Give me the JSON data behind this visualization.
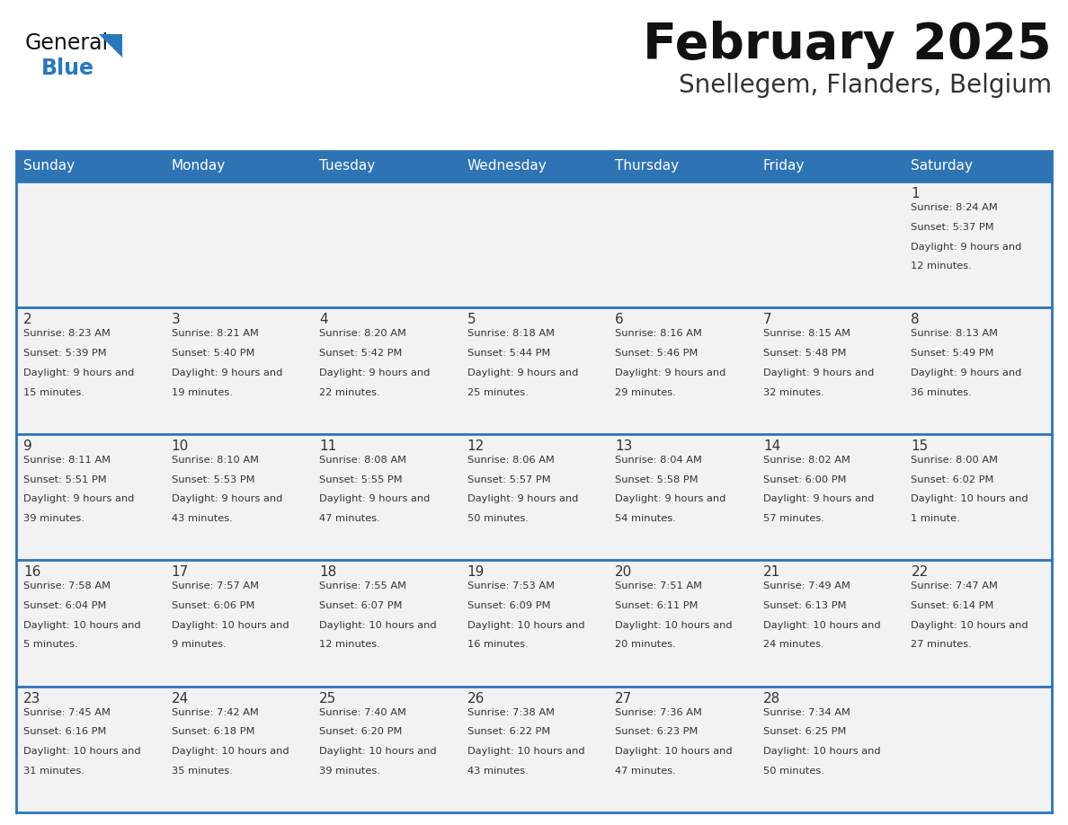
{
  "title": "February 2025",
  "subtitle": "Snellegem, Flanders, Belgium",
  "days_of_week": [
    "Sunday",
    "Monday",
    "Tuesday",
    "Wednesday",
    "Thursday",
    "Friday",
    "Saturday"
  ],
  "header_bg": "#2E74B5",
  "header_text": "#FFFFFF",
  "cell_bg": "#F2F2F2",
  "day_num_color": "#333333",
  "info_color": "#333333",
  "border_color": "#2E74B5",
  "title_color": "#111111",
  "subtitle_color": "#333333",
  "logo_general_color": "#111111",
  "logo_blue_color": "#2878BE",
  "fig_width": 11.88,
  "fig_height": 9.18,
  "dpi": 100,
  "calendar_data": [
    {
      "day": 1,
      "col": 6,
      "row": 0,
      "sunrise": "8:24 AM",
      "sunset": "5:37 PM",
      "daylight": "9 hours and 12 minutes"
    },
    {
      "day": 2,
      "col": 0,
      "row": 1,
      "sunrise": "8:23 AM",
      "sunset": "5:39 PM",
      "daylight": "9 hours and 15 minutes"
    },
    {
      "day": 3,
      "col": 1,
      "row": 1,
      "sunrise": "8:21 AM",
      "sunset": "5:40 PM",
      "daylight": "9 hours and 19 minutes"
    },
    {
      "day": 4,
      "col": 2,
      "row": 1,
      "sunrise": "8:20 AM",
      "sunset": "5:42 PM",
      "daylight": "9 hours and 22 minutes"
    },
    {
      "day": 5,
      "col": 3,
      "row": 1,
      "sunrise": "8:18 AM",
      "sunset": "5:44 PM",
      "daylight": "9 hours and 25 minutes"
    },
    {
      "day": 6,
      "col": 4,
      "row": 1,
      "sunrise": "8:16 AM",
      "sunset": "5:46 PM",
      "daylight": "9 hours and 29 minutes"
    },
    {
      "day": 7,
      "col": 5,
      "row": 1,
      "sunrise": "8:15 AM",
      "sunset": "5:48 PM",
      "daylight": "9 hours and 32 minutes"
    },
    {
      "day": 8,
      "col": 6,
      "row": 1,
      "sunrise": "8:13 AM",
      "sunset": "5:49 PM",
      "daylight": "9 hours and 36 minutes"
    },
    {
      "day": 9,
      "col": 0,
      "row": 2,
      "sunrise": "8:11 AM",
      "sunset": "5:51 PM",
      "daylight": "9 hours and 39 minutes"
    },
    {
      "day": 10,
      "col": 1,
      "row": 2,
      "sunrise": "8:10 AM",
      "sunset": "5:53 PM",
      "daylight": "9 hours and 43 minutes"
    },
    {
      "day": 11,
      "col": 2,
      "row": 2,
      "sunrise": "8:08 AM",
      "sunset": "5:55 PM",
      "daylight": "9 hours and 47 minutes"
    },
    {
      "day": 12,
      "col": 3,
      "row": 2,
      "sunrise": "8:06 AM",
      "sunset": "5:57 PM",
      "daylight": "9 hours and 50 minutes"
    },
    {
      "day": 13,
      "col": 4,
      "row": 2,
      "sunrise": "8:04 AM",
      "sunset": "5:58 PM",
      "daylight": "9 hours and 54 minutes"
    },
    {
      "day": 14,
      "col": 5,
      "row": 2,
      "sunrise": "8:02 AM",
      "sunset": "6:00 PM",
      "daylight": "9 hours and 57 minutes"
    },
    {
      "day": 15,
      "col": 6,
      "row": 2,
      "sunrise": "8:00 AM",
      "sunset": "6:02 PM",
      "daylight": "10 hours and 1 minute"
    },
    {
      "day": 16,
      "col": 0,
      "row": 3,
      "sunrise": "7:58 AM",
      "sunset": "6:04 PM",
      "daylight": "10 hours and 5 minutes"
    },
    {
      "day": 17,
      "col": 1,
      "row": 3,
      "sunrise": "7:57 AM",
      "sunset": "6:06 PM",
      "daylight": "10 hours and 9 minutes"
    },
    {
      "day": 18,
      "col": 2,
      "row": 3,
      "sunrise": "7:55 AM",
      "sunset": "6:07 PM",
      "daylight": "10 hours and 12 minutes"
    },
    {
      "day": 19,
      "col": 3,
      "row": 3,
      "sunrise": "7:53 AM",
      "sunset": "6:09 PM",
      "daylight": "10 hours and 16 minutes"
    },
    {
      "day": 20,
      "col": 4,
      "row": 3,
      "sunrise": "7:51 AM",
      "sunset": "6:11 PM",
      "daylight": "10 hours and 20 minutes"
    },
    {
      "day": 21,
      "col": 5,
      "row": 3,
      "sunrise": "7:49 AM",
      "sunset": "6:13 PM",
      "daylight": "10 hours and 24 minutes"
    },
    {
      "day": 22,
      "col": 6,
      "row": 3,
      "sunrise": "7:47 AM",
      "sunset": "6:14 PM",
      "daylight": "10 hours and 27 minutes"
    },
    {
      "day": 23,
      "col": 0,
      "row": 4,
      "sunrise": "7:45 AM",
      "sunset": "6:16 PM",
      "daylight": "10 hours and 31 minutes"
    },
    {
      "day": 24,
      "col": 1,
      "row": 4,
      "sunrise": "7:42 AM",
      "sunset": "6:18 PM",
      "daylight": "10 hours and 35 minutes"
    },
    {
      "day": 25,
      "col": 2,
      "row": 4,
      "sunrise": "7:40 AM",
      "sunset": "6:20 PM",
      "daylight": "10 hours and 39 minutes"
    },
    {
      "day": 26,
      "col": 3,
      "row": 4,
      "sunrise": "7:38 AM",
      "sunset": "6:22 PM",
      "daylight": "10 hours and 43 minutes"
    },
    {
      "day": 27,
      "col": 4,
      "row": 4,
      "sunrise": "7:36 AM",
      "sunset": "6:23 PM",
      "daylight": "10 hours and 47 minutes"
    },
    {
      "day": 28,
      "col": 5,
      "row": 4,
      "sunrise": "7:34 AM",
      "sunset": "6:25 PM",
      "daylight": "10 hours and 50 minutes"
    }
  ]
}
